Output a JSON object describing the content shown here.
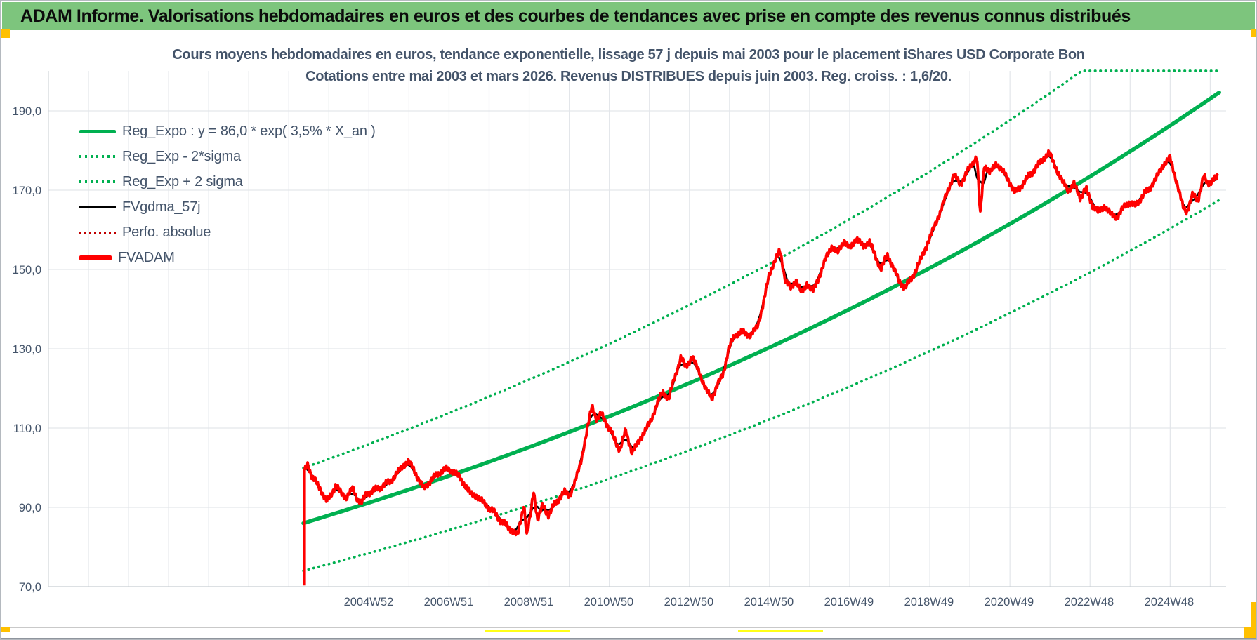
{
  "header": {
    "title": "ADAM Informe. Valorisations hebdomadaires en euros et des courbes de tendances avec prise en compte des revenus connus distribués"
  },
  "chart": {
    "title_line1": "Cours moyens hebdomadaires en euros, tendance exponentielle, lissage 57 j depuis mai 2003 pour le placement iShares USD Corporate Bon",
    "title_line2": "Cotations entre mai 2003 et mars 2026. Revenus DISTRIBUES depuis juin 2003. Reg. croiss. : 1,6/20.",
    "legend": [
      {
        "label": "Reg_Expo : y = 86,0 * exp( 3,5% *  X_an )",
        "swatch": "sw-green-solid"
      },
      {
        "label": "Reg_Exp - 2*sigma",
        "swatch": "sw-green-dotted"
      },
      {
        "label": "Reg_Exp + 2 sigma",
        "swatch": "sw-green-dotted"
      },
      {
        "label": "FVgdma_57j",
        "swatch": "sw-black-solid"
      },
      {
        "label": "Perfo. absolue",
        "swatch": "sw-red-dotted"
      },
      {
        "label": "FVADAM",
        "swatch": "sw-red-solid"
      }
    ]
  },
  "colors": {
    "header_green": "#7dc57d",
    "series_green": "#00B050",
    "series_red": "#FF0000",
    "perfo_red": "#C00000",
    "series_black": "#000000",
    "text_blue_gray": "#44546a",
    "gridline": "#e3e6ea",
    "excel_orange": "#FFC000",
    "excel_yellow": "#ffff17"
  },
  "chart_data": {
    "type": "line",
    "title": "Cours moyens hebdomadaires en euros, tendance exponentielle, lissage 57 j depuis mai 2003 pour le placement iShares USD Corporate Bon",
    "subtitle": "Cotations entre mai 2003 et mars 2026. Revenus DISTRIBUES depuis juin 2003. Reg. croiss. : 1,6/20.",
    "grid": true,
    "legend_position": "top-left-inside",
    "y_axis": {
      "min": 70,
      "max": 200.1,
      "tick_step": 20,
      "tick_values": [
        190,
        170,
        150,
        130,
        110,
        90,
        70
      ],
      "tick_labels": [
        "190,0",
        "170,0",
        "150,0",
        "130,0",
        "110,0",
        "90,0",
        "70,0"
      ]
    },
    "x_axis": {
      "t_start": 2003.37,
      "t_end": 2026.3,
      "gridline_step_years": 1,
      "tick_labels": [
        "2004W52",
        "2006W51",
        "2008W51",
        "2010W50",
        "2012W50",
        "2014W50",
        "2016W49",
        "2018W49",
        "2020W49",
        "2022W48",
        "2024W48"
      ],
      "tick_years": [
        2005,
        2007,
        2009,
        2011,
        2013,
        2015,
        2017,
        2019,
        2021,
        2023,
        2025
      ]
    },
    "regression": {
      "name": "Reg_Expo",
      "formula": "y = 86,0 * exp( 3,5% * X_an )",
      "base": 86.0,
      "rate_pct": 3.5,
      "render_rate": 0.0357,
      "sigma_mult": 1.162,
      "upper_clip_value": 200.1,
      "bands": [
        "Reg_Exp - 2*sigma",
        "Reg_Exp + 2 sigma"
      ]
    },
    "series": [
      {
        "name": "FVADAM",
        "color": "#FF0000",
        "style": "solid-thick",
        "starts_with_vertical_from": 70.3,
        "points": [
          [
            2003.4,
            99.2
          ],
          [
            2003.48,
            100.9
          ],
          [
            2003.58,
            97.8
          ],
          [
            2003.7,
            96.0
          ],
          [
            2003.82,
            94.2
          ],
          [
            2003.95,
            91.2
          ],
          [
            2004.05,
            93.0
          ],
          [
            2004.18,
            95.3
          ],
          [
            2004.3,
            93.6
          ],
          [
            2004.45,
            92.2
          ],
          [
            2004.6,
            94.6
          ],
          [
            2004.72,
            91.8
          ],
          [
            2004.82,
            90.9
          ],
          [
            2004.95,
            93.2
          ],
          [
            2005.1,
            93.8
          ],
          [
            2005.25,
            94.6
          ],
          [
            2005.4,
            95.4
          ],
          [
            2005.55,
            96.4
          ],
          [
            2005.7,
            98.2
          ],
          [
            2005.85,
            100.2
          ],
          [
            2006.0,
            101.3
          ],
          [
            2006.12,
            99.6
          ],
          [
            2006.25,
            96.8
          ],
          [
            2006.38,
            94.6
          ],
          [
            2006.52,
            96.3
          ],
          [
            2006.65,
            97.6
          ],
          [
            2006.8,
            99.0
          ],
          [
            2006.95,
            99.6
          ],
          [
            2007.1,
            99.2
          ],
          [
            2007.25,
            97.9
          ],
          [
            2007.4,
            95.8
          ],
          [
            2007.55,
            93.6
          ],
          [
            2007.7,
            93.0
          ],
          [
            2007.85,
            91.6
          ],
          [
            2008.0,
            90.2
          ],
          [
            2008.15,
            88.8
          ],
          [
            2008.3,
            86.9
          ],
          [
            2008.45,
            85.6
          ],
          [
            2008.6,
            84.3
          ],
          [
            2008.72,
            83.2
          ],
          [
            2008.82,
            88.0
          ],
          [
            2008.88,
            91.3
          ],
          [
            2008.95,
            83.1
          ],
          [
            2009.05,
            88.5
          ],
          [
            2009.12,
            94.8
          ],
          [
            2009.22,
            87.0
          ],
          [
            2009.35,
            90.8
          ],
          [
            2009.5,
            88.2
          ],
          [
            2009.62,
            90.6
          ],
          [
            2009.75,
            92.4
          ],
          [
            2009.9,
            94.0
          ],
          [
            2010.02,
            93.2
          ],
          [
            2010.15,
            96.2
          ],
          [
            2010.3,
            101.5
          ],
          [
            2010.45,
            109.0
          ],
          [
            2010.58,
            115.8
          ],
          [
            2010.7,
            112.0
          ],
          [
            2010.82,
            113.6
          ],
          [
            2010.95,
            111.0
          ],
          [
            2011.1,
            108.0
          ],
          [
            2011.28,
            104.3
          ],
          [
            2011.42,
            109.3
          ],
          [
            2011.58,
            103.6
          ],
          [
            2011.75,
            106.4
          ],
          [
            2011.9,
            109.0
          ],
          [
            2012.05,
            111.5
          ],
          [
            2012.2,
            115.8
          ],
          [
            2012.35,
            118.8
          ],
          [
            2012.5,
            117.2
          ],
          [
            2012.65,
            122.6
          ],
          [
            2012.8,
            127.4
          ],
          [
            2012.92,
            125.2
          ],
          [
            2013.08,
            127.6
          ],
          [
            2013.25,
            124.3
          ],
          [
            2013.42,
            119.6
          ],
          [
            2013.58,
            117.4
          ],
          [
            2013.72,
            120.8
          ],
          [
            2013.85,
            123.4
          ],
          [
            2014.0,
            130.0
          ],
          [
            2014.15,
            133.6
          ],
          [
            2014.35,
            134.2
          ],
          [
            2014.55,
            133.4
          ],
          [
            2014.72,
            136.0
          ],
          [
            2014.85,
            141.0
          ],
          [
            2015.0,
            148.5
          ],
          [
            2015.15,
            152.6
          ],
          [
            2015.28,
            154.9
          ],
          [
            2015.4,
            148.0
          ],
          [
            2015.55,
            145.2
          ],
          [
            2015.68,
            147.8
          ],
          [
            2015.82,
            144.2
          ],
          [
            2015.95,
            146.8
          ],
          [
            2016.1,
            144.8
          ],
          [
            2016.25,
            148.2
          ],
          [
            2016.42,
            153.0
          ],
          [
            2016.58,
            156.2
          ],
          [
            2016.72,
            154.4
          ],
          [
            2016.88,
            157.6
          ],
          [
            2017.02,
            155.2
          ],
          [
            2017.18,
            158.2
          ],
          [
            2017.35,
            155.8
          ],
          [
            2017.52,
            157.2
          ],
          [
            2017.68,
            152.8
          ],
          [
            2017.8,
            150.2
          ],
          [
            2017.95,
            153.6
          ],
          [
            2018.1,
            150.8
          ],
          [
            2018.25,
            146.8
          ],
          [
            2018.4,
            145.4
          ],
          [
            2018.55,
            147.2
          ],
          [
            2018.72,
            150.8
          ],
          [
            2018.9,
            154.8
          ],
          [
            2019.08,
            159.2
          ],
          [
            2019.28,
            164.2
          ],
          [
            2019.48,
            169.8
          ],
          [
            2019.62,
            173.6
          ],
          [
            2019.78,
            171.2
          ],
          [
            2019.95,
            174.2
          ],
          [
            2020.1,
            176.8
          ],
          [
            2020.2,
            178.3
          ],
          [
            2020.28,
            163.2
          ],
          [
            2020.38,
            176.2
          ],
          [
            2020.52,
            174.2
          ],
          [
            2020.68,
            176.6
          ],
          [
            2020.85,
            174.6
          ],
          [
            2021.0,
            172.2
          ],
          [
            2021.15,
            169.2
          ],
          [
            2021.3,
            171.0
          ],
          [
            2021.48,
            173.4
          ],
          [
            2021.65,
            175.4
          ],
          [
            2021.82,
            177.6
          ],
          [
            2022.0,
            179.6
          ],
          [
            2022.15,
            176.2
          ],
          [
            2022.32,
            172.6
          ],
          [
            2022.48,
            170.2
          ],
          [
            2022.62,
            171.8
          ],
          [
            2022.78,
            168.4
          ],
          [
            2022.92,
            170.6
          ],
          [
            2023.08,
            166.6
          ],
          [
            2023.22,
            164.8
          ],
          [
            2023.38,
            166.2
          ],
          [
            2023.55,
            164.2
          ],
          [
            2023.7,
            163.3
          ],
          [
            2023.85,
            165.8
          ],
          [
            2024.0,
            167.2
          ],
          [
            2024.15,
            166.2
          ],
          [
            2024.32,
            168.6
          ],
          [
            2024.5,
            170.4
          ],
          [
            2024.68,
            173.2
          ],
          [
            2024.85,
            176.4
          ],
          [
            2025.02,
            178.2
          ],
          [
            2025.18,
            172.4
          ],
          [
            2025.35,
            165.6
          ],
          [
            2025.44,
            164.4
          ],
          [
            2025.58,
            168.6
          ],
          [
            2025.72,
            167.2
          ],
          [
            2025.86,
            173.6
          ],
          [
            2025.96,
            171.2
          ],
          [
            2026.1,
            172.6
          ],
          [
            2026.22,
            172.9
          ]
        ]
      },
      {
        "name": "FVgdma_57j",
        "color": "#000000",
        "style": "solid",
        "derived_from": "FVADAM",
        "method": "57-day moving average (rendered as smoothed FVADAM)"
      },
      {
        "name": "Perfo. absolue",
        "color": "#C00000",
        "style": "dotted",
        "note": "coincides with FVADAM, hidden behind it"
      }
    ]
  }
}
